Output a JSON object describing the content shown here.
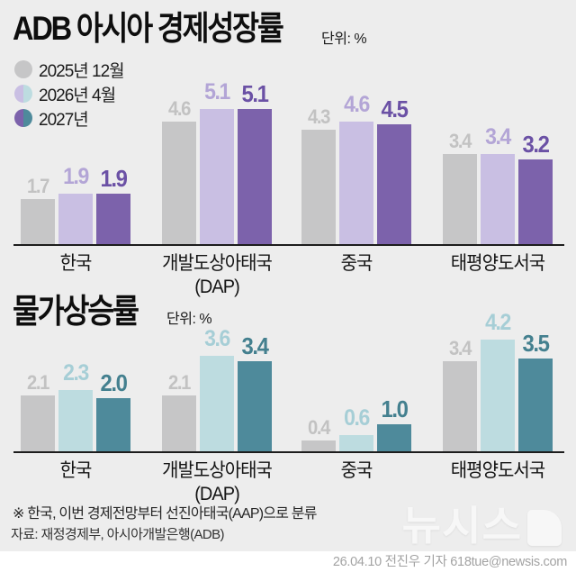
{
  "header": {
    "graphic_type": "news-infographic"
  },
  "legend": {
    "items": [
      {
        "label": "2025년 12월",
        "color_left": "#c6c6c7",
        "color_right": "#c6c6c7"
      },
      {
        "label": "2026년 4월",
        "color_left": "#c9bfe3",
        "color_right": "#bddce0"
      },
      {
        "label": "2027년",
        "color_left": "#7c62ab",
        "color_right": "#4e8a9b"
      }
    ]
  },
  "chart_data": [
    {
      "type": "bar",
      "title": "ADB 아시아 경제성장률",
      "unit": "단위: %",
      "categories": [
        {
          "label": "한국",
          "sub": ""
        },
        {
          "label": "개발도상아태국",
          "sub": "(DAP)"
        },
        {
          "label": "중국",
          "sub": ""
        },
        {
          "label": "태평양도서국",
          "sub": ""
        }
      ],
      "series": [
        {
          "name": "2025년 12월",
          "values": [
            1.7,
            4.6,
            4.3,
            3.4
          ]
        },
        {
          "name": "2026년 4월",
          "values": [
            1.9,
            5.1,
            4.6,
            3.4
          ]
        },
        {
          "name": "2027년",
          "values": [
            1.9,
            5.1,
            4.5,
            3.2
          ]
        }
      ],
      "bar_colors": [
        "#c6c6c7",
        "#c9bfe3",
        "#7c62ab"
      ],
      "label_colors": [
        "#c2c2c2",
        "#b3a5d6",
        "#6b51a5"
      ],
      "ylim": [
        0,
        5.5
      ],
      "grid": false,
      "y_axis_shown": false,
      "legend_position": "top-left"
    },
    {
      "type": "bar",
      "title": "물가상승률",
      "unit": "단위: %",
      "categories": [
        {
          "label": "한국",
          "sub": ""
        },
        {
          "label": "개발도상아태국",
          "sub": "(DAP)"
        },
        {
          "label": "중국",
          "sub": ""
        },
        {
          "label": "태평양도서국",
          "sub": ""
        }
      ],
      "series": [
        {
          "name": "2025년 12월",
          "values": [
            2.1,
            2.1,
            0.4,
            3.4
          ]
        },
        {
          "name": "2026년 4월",
          "values": [
            2.3,
            3.6,
            0.6,
            4.2
          ]
        },
        {
          "name": "2027년",
          "values": [
            2.0,
            3.4,
            1.0,
            3.5
          ]
        }
      ],
      "bar_colors": [
        "#c6c6c7",
        "#bddce0",
        "#4e8a9b"
      ],
      "label_colors": [
        "#c2c2c2",
        "#a6ced6",
        "#44808f"
      ],
      "ylim": [
        0,
        4.5
      ],
      "grid": false,
      "y_axis_shown": false,
      "legend_position": "shared-top-left"
    }
  ],
  "footer": {
    "footnote": "※ 한국, 이번 경제전망부터 선진아태국(AAP)으로 분류",
    "source": "자료: 재정경제부, 아시아개발은행(ADB)",
    "logo_text": "뉴시스",
    "credit": "26.04.10 전진우 기자 618tue@newsis.com"
  },
  "colors": {
    "background": "#ededed",
    "axis": "#1d1d1d",
    "bottom_strip": "#ffffff"
  }
}
